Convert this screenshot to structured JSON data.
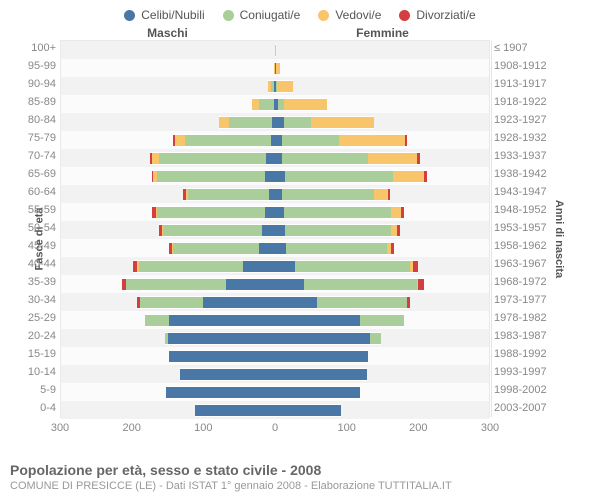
{
  "legend": [
    {
      "label": "Celibi/Nubili",
      "color": "#4a78a6"
    },
    {
      "label": "Coniugati/e",
      "color": "#a9ce9a"
    },
    {
      "label": "Vedovi/e",
      "color": "#f9c56b"
    },
    {
      "label": "Divorziati/e",
      "color": "#d53e3e"
    }
  ],
  "header_male": "Maschi",
  "header_female": "Femmine",
  "axis_left_title": "Fasce di età",
  "axis_right_title": "Anni di nascita",
  "caption_title": "Popolazione per età, sesso e stato civile - 2008",
  "caption_sub": "COMUNE DI PRESICCE (LE) - Dati ISTAT 1° gennaio 2008 - Elaborazione TUTTITALIA.IT",
  "xticks": [
    -300,
    -200,
    -100,
    0,
    100,
    200,
    300
  ],
  "max": 300,
  "colors": {
    "single": "#4a78a6",
    "married": "#a9ce9a",
    "widow": "#f9c56b",
    "divorced": "#d53e3e",
    "plot_bg": "#f7f7f7",
    "grid": "#e5e5e5",
    "text_muted": "#888888"
  },
  "rows": [
    {
      "age": "100+",
      "birth": "≤ 1907",
      "m": {
        "s": 0,
        "c": 0,
        "w": 0,
        "d": 0
      },
      "f": {
        "s": 0,
        "c": 0,
        "w": 1,
        "d": 0
      }
    },
    {
      "age": "95-99",
      "birth": "1908-1912",
      "m": {
        "s": 0,
        "c": 0,
        "w": 1,
        "d": 0
      },
      "f": {
        "s": 1,
        "c": 0,
        "w": 6,
        "d": 0
      }
    },
    {
      "age": "90-94",
      "birth": "1913-1917",
      "m": {
        "s": 2,
        "c": 4,
        "w": 4,
        "d": 0
      },
      "f": {
        "s": 2,
        "c": 1,
        "w": 22,
        "d": 0
      }
    },
    {
      "age": "85-89",
      "birth": "1918-1922",
      "m": {
        "s": 2,
        "c": 20,
        "w": 10,
        "d": 0
      },
      "f": {
        "s": 4,
        "c": 8,
        "w": 60,
        "d": 0
      }
    },
    {
      "age": "80-84",
      "birth": "1923-1927",
      "m": {
        "s": 4,
        "c": 60,
        "w": 14,
        "d": 0
      },
      "f": {
        "s": 12,
        "c": 38,
        "w": 88,
        "d": 0
      }
    },
    {
      "age": "75-79",
      "birth": "1928-1932",
      "m": {
        "s": 6,
        "c": 120,
        "w": 14,
        "d": 2
      },
      "f": {
        "s": 10,
        "c": 80,
        "w": 92,
        "d": 2
      }
    },
    {
      "age": "70-74",
      "birth": "1933-1937",
      "m": {
        "s": 12,
        "c": 150,
        "w": 10,
        "d": 2
      },
      "f": {
        "s": 10,
        "c": 120,
        "w": 68,
        "d": 4
      }
    },
    {
      "age": "65-69",
      "birth": "1938-1942",
      "m": {
        "s": 14,
        "c": 150,
        "w": 6,
        "d": 2
      },
      "f": {
        "s": 14,
        "c": 150,
        "w": 44,
        "d": 4
      }
    },
    {
      "age": "60-64",
      "birth": "1943-1947",
      "m": {
        "s": 8,
        "c": 114,
        "w": 2,
        "d": 4
      },
      "f": {
        "s": 10,
        "c": 128,
        "w": 20,
        "d": 2
      }
    },
    {
      "age": "55-59",
      "birth": "1948-1952",
      "m": {
        "s": 14,
        "c": 150,
        "w": 2,
        "d": 6
      },
      "f": {
        "s": 12,
        "c": 150,
        "w": 14,
        "d": 4
      }
    },
    {
      "age": "50-54",
      "birth": "1953-1957",
      "m": {
        "s": 18,
        "c": 138,
        "w": 2,
        "d": 4
      },
      "f": {
        "s": 14,
        "c": 148,
        "w": 8,
        "d": 4
      }
    },
    {
      "age": "45-49",
      "birth": "1958-1962",
      "m": {
        "s": 22,
        "c": 120,
        "w": 2,
        "d": 4
      },
      "f": {
        "s": 16,
        "c": 140,
        "w": 6,
        "d": 4
      }
    },
    {
      "age": "40-44",
      "birth": "1963-1967",
      "m": {
        "s": 44,
        "c": 146,
        "w": 2,
        "d": 6
      },
      "f": {
        "s": 28,
        "c": 160,
        "w": 4,
        "d": 8
      }
    },
    {
      "age": "35-39",
      "birth": "1968-1972",
      "m": {
        "s": 68,
        "c": 140,
        "w": 0,
        "d": 6
      },
      "f": {
        "s": 40,
        "c": 158,
        "w": 2,
        "d": 8
      }
    },
    {
      "age": "30-34",
      "birth": "1973-1977",
      "m": {
        "s": 100,
        "c": 88,
        "w": 0,
        "d": 4
      },
      "f": {
        "s": 58,
        "c": 126,
        "w": 0,
        "d": 4
      }
    },
    {
      "age": "25-29",
      "birth": "1978-1982",
      "m": {
        "s": 148,
        "c": 34,
        "w": 0,
        "d": 0
      },
      "f": {
        "s": 118,
        "c": 62,
        "w": 0,
        "d": 0
      }
    },
    {
      "age": "20-24",
      "birth": "1983-1987",
      "m": {
        "s": 150,
        "c": 4,
        "w": 0,
        "d": 0
      },
      "f": {
        "s": 132,
        "c": 16,
        "w": 0,
        "d": 0
      }
    },
    {
      "age": "15-19",
      "birth": "1988-1992",
      "m": {
        "s": 148,
        "c": 0,
        "w": 0,
        "d": 0
      },
      "f": {
        "s": 130,
        "c": 0,
        "w": 0,
        "d": 0
      }
    },
    {
      "age": "10-14",
      "birth": "1993-1997",
      "m": {
        "s": 132,
        "c": 0,
        "w": 0,
        "d": 0
      },
      "f": {
        "s": 128,
        "c": 0,
        "w": 0,
        "d": 0
      }
    },
    {
      "age": "5-9",
      "birth": "1998-2002",
      "m": {
        "s": 152,
        "c": 0,
        "w": 0,
        "d": 0
      },
      "f": {
        "s": 118,
        "c": 0,
        "w": 0,
        "d": 0
      }
    },
    {
      "age": "0-4",
      "birth": "2003-2007",
      "m": {
        "s": 112,
        "c": 0,
        "w": 0,
        "d": 0
      },
      "f": {
        "s": 92,
        "c": 0,
        "w": 0,
        "d": 0
      }
    }
  ]
}
